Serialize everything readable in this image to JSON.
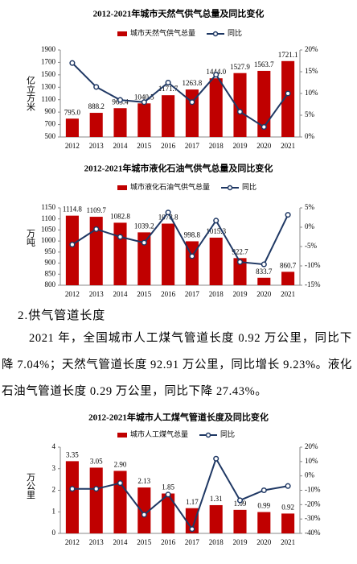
{
  "chart_data": [
    {
      "type": "bar",
      "title": "2012-2021年城市天然气供气总量及同比变化",
      "y_label": "亿立方米",
      "categories": [
        "2012",
        "2013",
        "2014",
        "2015",
        "2016",
        "2017",
        "2018",
        "2019",
        "2020",
        "2021"
      ],
      "series": [
        {
          "name": "城市天然气供气总量",
          "color": "#c00000",
          "values": [
            795.0,
            888.2,
            963.4,
            1040.5,
            1171.7,
            1263.8,
            1444.0,
            1527.9,
            1563.7,
            1721.1
          ],
          "value_labels": [
            "795.0",
            "888.2",
            "963.4",
            "1040.5",
            "1171.7",
            "1263.8",
            "1444.0",
            "1527.9",
            "1563.7",
            "1721.1"
          ]
        },
        {
          "name": "同比",
          "color": "#1f3864",
          "axis": "y2",
          "values": [
            17,
            11.5,
            8.5,
            8,
            12.5,
            8,
            14.3,
            5.8,
            2.3,
            10
          ]
        }
      ],
      "ylim": [
        500,
        1900
      ],
      "yticks": [
        500,
        700,
        900,
        1100,
        1300,
        1500,
        1700,
        1900
      ],
      "y2lim": [
        0,
        20
      ],
      "y2ticks": [
        {
          "value": 0,
          "label": "0%"
        },
        {
          "value": 5,
          "label": "5%"
        },
        {
          "value": 10,
          "label": "10%"
        },
        {
          "value": 15,
          "label": "15%"
        },
        {
          "value": 20,
          "label": "20%"
        }
      ]
    },
    {
      "type": "bar",
      "title": "2012-2021年城市液化石油气供气总量及同比变化",
      "y_label": "万吨",
      "categories": [
        "2012",
        "2013",
        "2014",
        "2015",
        "2016",
        "2017",
        "2018",
        "2019",
        "2020",
        "2021"
      ],
      "series": [
        {
          "name": "城市液化石油气供气总量",
          "color": "#c00000",
          "values": [
            1114.8,
            1109.7,
            1082.8,
            1039.2,
            1078.8,
            998.8,
            1015.3,
            922.7,
            833.7,
            860.7
          ]
        },
        {
          "name": "同比",
          "color": "#1f3864",
          "axis": "y2",
          "values": [
            -4.5,
            -0.5,
            -2.5,
            -4,
            3.8,
            -7.5,
            1.7,
            -9,
            -9.6,
            3.2
          ]
        }
      ],
      "ylim": [
        800,
        1150
      ],
      "yticks": [
        800,
        850,
        900,
        950,
        1000,
        1050,
        1100,
        1150
      ],
      "y2lim": [
        -15,
        5
      ],
      "y2ticks": [
        {
          "value": -15,
          "label": "-15%"
        },
        {
          "value": -10,
          "label": "-10%"
        },
        {
          "value": -5,
          "label": "-5%"
        },
        {
          "value": 0,
          "label": "0%"
        },
        {
          "value": 5,
          "label": "5%"
        }
      ]
    },
    {
      "type": "bar",
      "title": "2012-2021年城市人工煤气管道长度及同比变化",
      "y_label": "万公里",
      "categories": [
        "2012",
        "2013",
        "2014",
        "2015",
        "2016",
        "2017",
        "2018",
        "2019",
        "2020",
        "2021"
      ],
      "series": [
        {
          "name": "城市人工煤气总量",
          "color": "#c00000",
          "values": [
            3.35,
            3.05,
            2.9,
            2.13,
            1.85,
            1.17,
            1.31,
            1.09,
            0.99,
            0.92
          ],
          "value_labels": [
            "3.35",
            "3.05",
            "2.90",
            "2.13",
            "1.85",
            "1.17",
            "1.31",
            "1.09",
            "0.99",
            "0.92"
          ]
        },
        {
          "name": "同比",
          "color": "#1f3864",
          "axis": "y2",
          "values": [
            -9,
            -9,
            -5,
            -27,
            -13,
            -37,
            12,
            -17,
            -10,
            -7.04
          ]
        }
      ],
      "ylim": [
        0,
        4
      ],
      "yticks": [
        0,
        1,
        2,
        3,
        4
      ],
      "y2lim": [
        -40,
        20
      ],
      "y2ticks": [
        {
          "value": -40,
          "label": "-40%"
        },
        {
          "value": -30,
          "label": "-30%"
        },
        {
          "value": -20,
          "label": "-20%"
        },
        {
          "value": -10,
          "label": "-10%"
        },
        {
          "value": 0,
          "label": "0%"
        },
        {
          "value": 10,
          "label": "10%"
        },
        {
          "value": 20,
          "label": "20%"
        }
      ]
    }
  ],
  "section": {
    "heading": "2.供气管道长度",
    "paragraph": "2021 年，全国城市人工煤气管道长度 0.92 万公里，同比下降 7.04%；天然气管道长度 92.91 万公里，同比增长 9.23%。液化石油气管道长度 0.29 万公里，同比下降 27.43%。"
  }
}
